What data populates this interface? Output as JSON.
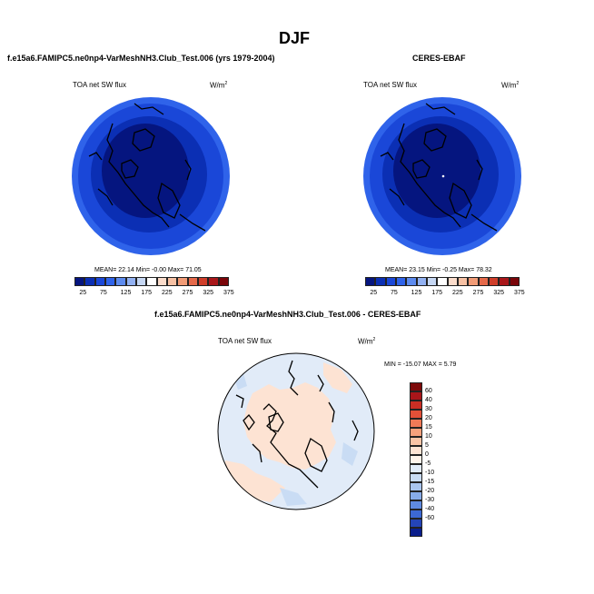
{
  "figure": {
    "season_title": "DJF"
  },
  "panels": [
    {
      "id": "model",
      "header": "f.e15a6.FAMIPC5.ne0np4-VarMeshNH3.Club_Test.006 (yrs 1979-2004)",
      "variable": "TOA net SW flux",
      "units": "W/m",
      "units_sup": "2",
      "stats": "MEAN=  22.14  Min=  -0.00  Max=  71.05"
    },
    {
      "id": "obs",
      "header": "CERES-EBAF",
      "variable": "TOA net SW flux",
      "units": "W/m",
      "units_sup": "2",
      "stats": "MEAN=  23.15  Min=  -0.25  Max=  78.32"
    },
    {
      "id": "diff",
      "header": "f.e15a6.FAMIPC5.ne0np4-VarMeshNH3.Club_Test.006 - CERES-EBAF",
      "variable": "TOA net SW flux",
      "units": "W/m",
      "units_sup": "2",
      "stats": "MIN = -15.07  MAX =  5.79"
    }
  ],
  "abs_colorbar": {
    "colors": [
      "#05157f",
      "#0b2fb4",
      "#1a47d8",
      "#2f63ea",
      "#5d8bef",
      "#92b1f2",
      "#c6d7f3",
      "#ffffff",
      "#fbdccb",
      "#f7c1a4",
      "#f19b76",
      "#e5694a",
      "#cf3e2a",
      "#a9171a",
      "#7a0509"
    ],
    "labels": [
      "25",
      "75",
      "125",
      "175",
      "225",
      "275",
      "325",
      "375"
    ]
  },
  "diff_colorbar": {
    "colors": [
      "#7d0a0a",
      "#a8161a",
      "#cb2e24",
      "#e25038",
      "#f07a57",
      "#f6a17c",
      "#f9c4a6",
      "#fde3d3",
      "#fef3ea",
      "#e1ebf8",
      "#c9dcf4",
      "#a9c5ef",
      "#87abe9",
      "#5f8ae0",
      "#3c68d4",
      "#2444b7",
      "#0a1e8c"
    ],
    "labels": [
      "60",
      "40",
      "30",
      "20",
      "15",
      "10",
      "5",
      "0",
      "-5",
      "-10",
      "-15",
      "-20",
      "-30",
      "-40",
      "-60"
    ]
  },
  "chart_data": [
    {
      "type": "heatmap",
      "title": "f.e15a6.FAMIPC5.ne0np4-VarMeshNH3.Club_Test.006 (yrs 1979-2004)",
      "variable": "TOA net SW flux",
      "units": "W/m2",
      "projection": "north polar stereographic",
      "season": "DJF",
      "mean": 22.14,
      "min": -0.0,
      "max": 71.05,
      "colorbar_levels": [
        25,
        75,
        125,
        175,
        225,
        275,
        325,
        375
      ]
    },
    {
      "type": "heatmap",
      "title": "CERES-EBAF",
      "variable": "TOA net SW flux",
      "units": "W/m2",
      "projection": "north polar stereographic",
      "season": "DJF",
      "mean": 23.15,
      "min": -0.25,
      "max": 78.32,
      "colorbar_levels": [
        25,
        75,
        125,
        175,
        225,
        275,
        325,
        375
      ]
    },
    {
      "type": "heatmap",
      "title": "f.e15a6.FAMIPC5.ne0np4-VarMeshNH3.Club_Test.006 - CERES-EBAF",
      "variable": "TOA net SW flux",
      "units": "W/m2",
      "projection": "north polar stereographic",
      "season": "DJF",
      "min": -15.07,
      "max": 5.79,
      "colorbar_levels": [
        60,
        40,
        30,
        20,
        15,
        10,
        5,
        0,
        -5,
        -10,
        -15,
        -20,
        -30,
        -40,
        -60
      ]
    }
  ]
}
